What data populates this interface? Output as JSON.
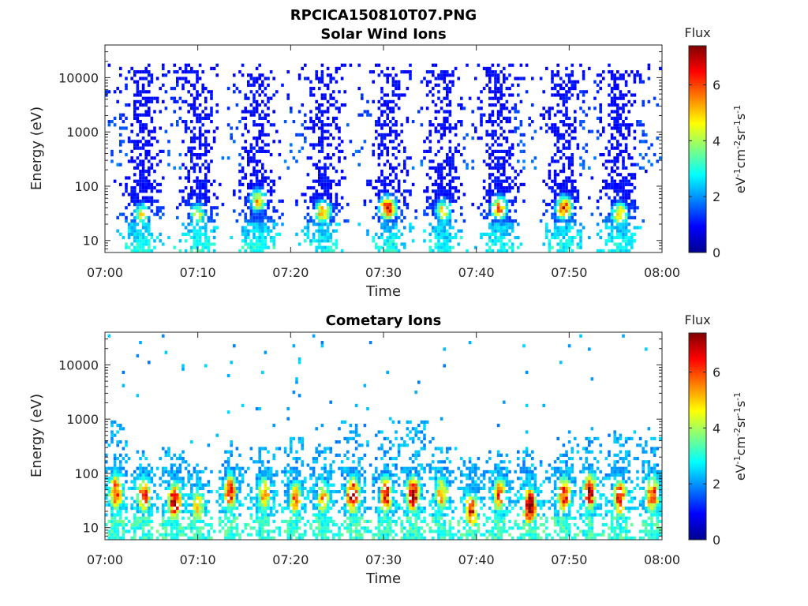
{
  "figure": {
    "title": "RPCICA150810T07.PNG"
  },
  "colormap": [
    "#00008f",
    "#0000ff",
    "#0080ff",
    "#00ffff",
    "#80ff80",
    "#ffff00",
    "#ff8000",
    "#ff0000",
    "#800000"
  ],
  "chart_data": [
    {
      "type": "heatmap",
      "title": "Solar Wind Ions",
      "xlabel": "Time",
      "ylabel": "Energy (eV)",
      "x_ticks": [
        "07:00",
        "07:10",
        "07:20",
        "07:30",
        "07:40",
        "07:50",
        "08:00"
      ],
      "xlim": [
        "07:00",
        "08:00"
      ],
      "y_scale": "log",
      "y_ticks": [
        "10",
        "100",
        "1000",
        "10000"
      ],
      "ylim": [
        6,
        40000
      ],
      "colorbar": {
        "label": "Flux",
        "units": "eV-1cm-2sr-1s-1",
        "ticks": [
          "0",
          "2",
          "4",
          "6"
        ],
        "range": [
          0,
          7.4
        ]
      },
      "bursts": [
        {
          "t": 4,
          "e_max": 13000,
          "peak_flux": 4.6,
          "peak_energy": 30
        },
        {
          "t": 10,
          "e_max": 13000,
          "peak_flux": 4.4,
          "peak_energy": 30
        },
        {
          "t": 16.5,
          "e_max": 13000,
          "peak_flux": 5.2,
          "peak_energy": 55
        },
        {
          "t": 23.5,
          "e_max": 13000,
          "peak_flux": 5.6,
          "peak_energy": 33
        },
        {
          "t": 30.5,
          "e_max": 13000,
          "peak_flux": 6.8,
          "peak_energy": 40
        },
        {
          "t": 36.5,
          "e_max": 13000,
          "peak_flux": 5.0,
          "peak_energy": 35
        },
        {
          "t": 42.5,
          "e_max": 13000,
          "peak_flux": 6.0,
          "peak_energy": 40
        },
        {
          "t": 49.5,
          "e_max": 13000,
          "peak_flux": 6.4,
          "peak_energy": 40
        },
        {
          "t": 55.5,
          "e_max": 13000,
          "peak_flux": 5.6,
          "peak_energy": 30
        }
      ]
    },
    {
      "type": "heatmap",
      "title": "Cometary Ions",
      "xlabel": "Time",
      "ylabel": "Energy (eV)",
      "x_ticks": [
        "07:00",
        "07:10",
        "07:20",
        "07:30",
        "07:40",
        "07:50",
        "08:00"
      ],
      "xlim": [
        "07:00",
        "08:00"
      ],
      "y_scale": "log",
      "y_ticks": [
        "10",
        "100",
        "1000",
        "10000"
      ],
      "ylim": [
        6,
        40000
      ],
      "colorbar": {
        "label": "Flux",
        "units": "eV-1cm-2sr-1s-1",
        "ticks": [
          "0",
          "2",
          "4",
          "6"
        ],
        "range": [
          0,
          7.4
        ]
      },
      "bursts": [
        {
          "t": 1.2,
          "e_max": 1000,
          "peak_flux": 6.4,
          "peak_energy": 45
        },
        {
          "t": 4.2,
          "e_max": 250,
          "peak_flux": 6.4,
          "peak_energy": 40
        },
        {
          "t": 7.5,
          "e_max": 300,
          "peak_flux": 7.2,
          "peak_energy": 30
        },
        {
          "t": 10.0,
          "e_max": 120,
          "peak_flux": 5.0,
          "peak_energy": 25
        },
        {
          "t": 13.5,
          "e_max": 400,
          "peak_flux": 6.4,
          "peak_energy": 45
        },
        {
          "t": 17.2,
          "e_max": 300,
          "peak_flux": 5.6,
          "peak_energy": 40
        },
        {
          "t": 20.5,
          "e_max": 500,
          "peak_flux": 5.6,
          "peak_energy": 35
        },
        {
          "t": 23.5,
          "e_max": 300,
          "peak_flux": 5.4,
          "peak_energy": 35
        },
        {
          "t": 26.7,
          "e_max": 1000,
          "peak_flux": 7.4,
          "peak_energy": 40
        },
        {
          "t": 30.3,
          "e_max": 600,
          "peak_flux": 6.6,
          "peak_energy": 40
        },
        {
          "t": 33.2,
          "e_max": 1000,
          "peak_flux": 7.4,
          "peak_energy": 40
        },
        {
          "t": 36.3,
          "e_max": 300,
          "peak_flux": 5.6,
          "peak_energy": 40
        },
        {
          "t": 39.5,
          "e_max": 200,
          "peak_flux": 6.6,
          "peak_energy": 20
        },
        {
          "t": 42.5,
          "e_max": 250,
          "peak_flux": 6.0,
          "peak_energy": 40
        },
        {
          "t": 45.8,
          "e_max": 300,
          "peak_flux": 7.4,
          "peak_energy": 25
        },
        {
          "t": 49.5,
          "e_max": 600,
          "peak_flux": 6.6,
          "peak_energy": 40
        },
        {
          "t": 52.3,
          "e_max": 500,
          "peak_flux": 7.0,
          "peak_energy": 45
        },
        {
          "t": 55.5,
          "e_max": 600,
          "peak_flux": 6.6,
          "peak_energy": 35
        },
        {
          "t": 59.0,
          "e_max": 500,
          "peak_flux": 6.4,
          "peak_energy": 40
        }
      ]
    }
  ]
}
